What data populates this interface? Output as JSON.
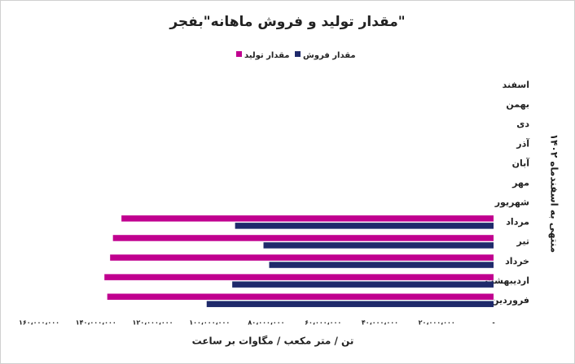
{
  "chart_data": {
    "type": "hbar",
    "title": "مقدار تولید و فروش ماهانه\"بفجر\"",
    "x_label": "تن / متر مکعب / مگاوات بر ساعت",
    "y_label": "منتهی به اسفندماه ۱۴۰۲",
    "categories": [
      "اسفند",
      "بهمن",
      "دی",
      "آذر",
      "آبان",
      "مهر",
      "شهریور",
      "مرداد",
      "تیر",
      "خرداد",
      "اردیبهشت",
      "فروردین"
    ],
    "series": [
      {
        "name": "مقدار تولید",
        "color": "#c0008f",
        "values": [
          null,
          null,
          null,
          null,
          null,
          null,
          null,
          131000000,
          134000000,
          135000000,
          137000000,
          136000000
        ]
      },
      {
        "name": "مقدار فروش",
        "color": "#1f2a6b",
        "values": [
          null,
          null,
          null,
          null,
          null,
          null,
          null,
          91000000,
          81000000,
          79000000,
          92000000,
          101000000
        ]
      }
    ],
    "xlim": [
      0,
      160000000
    ],
    "xticks": [
      {
        "value": 0,
        "label": "-"
      },
      {
        "value": 20000000,
        "label": "۲۰،۰۰۰،۰۰۰"
      },
      {
        "value": 40000000,
        "label": "۴۰،۰۰۰،۰۰۰"
      },
      {
        "value": 60000000,
        "label": "۶۰،۰۰۰،۰۰۰"
      },
      {
        "value": 80000000,
        "label": "۸۰،۰۰۰،۰۰۰"
      },
      {
        "value": 100000000,
        "label": "۱۰۰،۰۰۰،۰۰۰"
      },
      {
        "value": 120000000,
        "label": "۱۲۰،۰۰۰،۰۰۰"
      },
      {
        "value": 140000000,
        "label": "۱۴۰،۰۰۰،۰۰۰"
      },
      {
        "value": 160000000,
        "label": "۱۶۰،۰۰۰،۰۰۰"
      }
    ],
    "reversed_x": true
  }
}
